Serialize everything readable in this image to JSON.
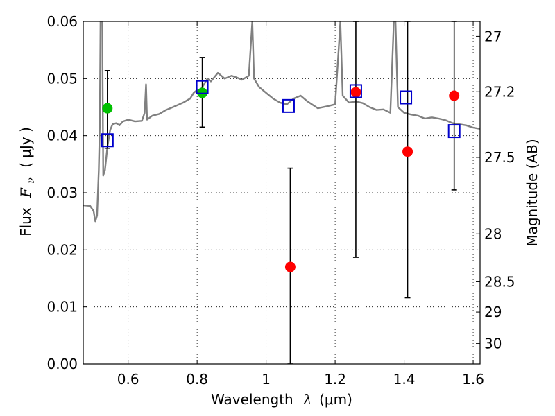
{
  "chart_data": {
    "type": "scatter",
    "title": "",
    "xlabel": {
      "prefix": "Wavelength",
      "symbol": "λ",
      "unit": "(μm)"
    },
    "ylabel": {
      "prefix": "Flux",
      "symbol": "F",
      "subscript": "ν",
      "unit": "( μJy )"
    },
    "y2label": "Magnitude (AB)",
    "xlim": [
      0.47,
      1.62
    ],
    "ylim": [
      0.0,
      0.06
    ],
    "grid": true,
    "grid_style": "dotted",
    "xticks": [
      0.6,
      0.8,
      1.0,
      1.2,
      1.4,
      1.6
    ],
    "xtick_labels": [
      "0.6",
      "0.8",
      "1",
      "1.2",
      "1.4",
      "1.6"
    ],
    "yticks": [
      0.0,
      0.01,
      0.02,
      0.03,
      0.04,
      0.05,
      0.06
    ],
    "ytick_labels": [
      "0.00",
      "0.01",
      "0.02",
      "0.03",
      "0.04",
      "0.05",
      "0.06"
    ],
    "y2ticks": [
      {
        "label": "27",
        "flux": 0.0574
      },
      {
        "label": "27.2",
        "flux": 0.0477
      },
      {
        "label": "27.5",
        "flux": 0.0362
      },
      {
        "label": "28",
        "flux": 0.0228
      },
      {
        "label": "28.5",
        "flux": 0.0144
      },
      {
        "label": "29",
        "flux": 0.0091
      },
      {
        "label": "30",
        "flux": 0.0036
      }
    ],
    "model_spectrum": {
      "color": "#808080",
      "points": [
        [
          0.47,
          0.0278
        ],
        [
          0.49,
          0.0277
        ],
        [
          0.5,
          0.0268
        ],
        [
          0.505,
          0.025
        ],
        [
          0.51,
          0.026
        ],
        [
          0.515,
          0.034
        ],
        [
          0.518,
          0.042
        ],
        [
          0.52,
          0.06
        ],
        [
          0.525,
          0.06
        ],
        [
          0.528,
          0.033
        ],
        [
          0.533,
          0.034
        ],
        [
          0.54,
          0.038
        ],
        [
          0.548,
          0.041
        ],
        [
          0.555,
          0.042
        ],
        [
          0.565,
          0.0422
        ],
        [
          0.575,
          0.0418
        ],
        [
          0.585,
          0.0425
        ],
        [
          0.6,
          0.0428
        ],
        [
          0.62,
          0.0425
        ],
        [
          0.64,
          0.0426
        ],
        [
          0.648,
          0.044
        ],
        [
          0.652,
          0.049
        ],
        [
          0.655,
          0.0428
        ],
        [
          0.67,
          0.0435
        ],
        [
          0.69,
          0.0438
        ],
        [
          0.71,
          0.0445
        ],
        [
          0.73,
          0.045
        ],
        [
          0.76,
          0.0458
        ],
        [
          0.78,
          0.0465
        ],
        [
          0.79,
          0.0475
        ],
        [
          0.8,
          0.048
        ],
        [
          0.81,
          0.048
        ],
        [
          0.82,
          0.049
        ],
        [
          0.83,
          0.05
        ],
        [
          0.84,
          0.0495
        ],
        [
          0.86,
          0.051
        ],
        [
          0.88,
          0.05
        ],
        [
          0.9,
          0.0505
        ],
        [
          0.915,
          0.0502
        ],
        [
          0.93,
          0.0498
        ],
        [
          0.95,
          0.0505
        ],
        [
          0.96,
          0.06
        ],
        [
          0.965,
          0.05
        ],
        [
          0.98,
          0.0485
        ],
        [
          1.0,
          0.0475
        ],
        [
          1.02,
          0.0465
        ],
        [
          1.04,
          0.0458
        ],
        [
          1.06,
          0.0455
        ],
        [
          1.08,
          0.0465
        ],
        [
          1.1,
          0.047
        ],
        [
          1.12,
          0.046
        ],
        [
          1.15,
          0.0448
        ],
        [
          1.18,
          0.0452
        ],
        [
          1.2,
          0.0455
        ],
        [
          1.21,
          0.055
        ],
        [
          1.215,
          0.06
        ],
        [
          1.222,
          0.047
        ],
        [
          1.24,
          0.0458
        ],
        [
          1.26,
          0.046
        ],
        [
          1.28,
          0.0457
        ],
        [
          1.3,
          0.045
        ],
        [
          1.32,
          0.0445
        ],
        [
          1.34,
          0.0446
        ],
        [
          1.36,
          0.044
        ],
        [
          1.37,
          0.06
        ],
        [
          1.375,
          0.06
        ],
        [
          1.382,
          0.045
        ],
        [
          1.4,
          0.044
        ],
        [
          1.42,
          0.0437
        ],
        [
          1.44,
          0.0435
        ],
        [
          1.46,
          0.043
        ],
        [
          1.48,
          0.0432
        ],
        [
          1.5,
          0.043
        ],
        [
          1.52,
          0.0427
        ],
        [
          1.54,
          0.0422
        ],
        [
          1.56,
          0.042
        ],
        [
          1.58,
          0.0418
        ],
        [
          1.6,
          0.0414
        ],
        [
          1.62,
          0.0412
        ]
      ]
    },
    "series": [
      {
        "name": "",
        "marker": "circle",
        "color": "#00c000",
        "points": [
          {
            "x": 0.54,
            "y": 0.0448,
            "yerr_low": null,
            "yerr_high": null
          },
          {
            "x": 0.815,
            "y": 0.0475,
            "yerr_low": null,
            "yerr_high": null
          }
        ]
      },
      {
        "name": "",
        "marker": "circle",
        "color": "#ff0000",
        "points": [
          {
            "x": 1.07,
            "y": 0.017,
            "yerr_low": 0.0,
            "yerr_high": 0.0343
          },
          {
            "x": 1.26,
            "y": 0.0476,
            "yerr_low": 0.0187,
            "yerr_high": 0.06
          },
          {
            "x": 1.41,
            "y": 0.0372,
            "yerr_low": 0.0116,
            "yerr_high": 0.06
          },
          {
            "x": 1.545,
            "y": 0.047,
            "yerr_low": 0.0305,
            "yerr_high": 0.06
          }
        ]
      },
      {
        "name": "",
        "marker": "open-square",
        "color": "#0000cc",
        "points": [
          {
            "x": 0.54,
            "y": 0.0392,
            "yerr_low": 0.0378,
            "yerr_high": 0.0514
          },
          {
            "x": 0.815,
            "y": 0.0485,
            "yerr_low": 0.0415,
            "yerr_high": 0.0537
          },
          {
            "x": 1.065,
            "y": 0.0452,
            "yerr_low": null,
            "yerr_high": null
          },
          {
            "x": 1.26,
            "y": 0.0478,
            "yerr_low": null,
            "yerr_high": null
          },
          {
            "x": 1.405,
            "y": 0.0467,
            "yerr_low": null,
            "yerr_high": null
          },
          {
            "x": 1.545,
            "y": 0.0408,
            "yerr_low": null,
            "yerr_high": null
          }
        ]
      }
    ]
  }
}
